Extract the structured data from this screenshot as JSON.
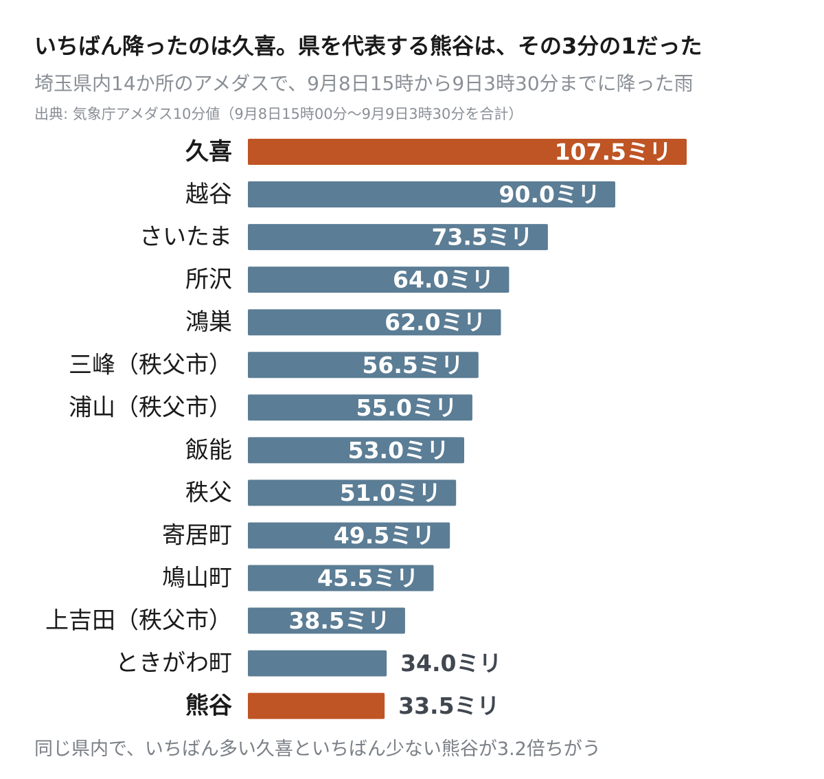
{
  "header": {
    "title": "いちばん降ったのは久喜。県を代表する熊谷は、その3分の1だった",
    "subtitle": "埼玉県内14か所のアメダスで、9月8日15時から9日3時30分までに降った雨",
    "source": "出典: 気象庁アメダス10分値（9月8日15時00分〜9月9日3時30分を合計）"
  },
  "footer": {
    "note": "同じ県内で、いちばん多い久喜といちばん少ない熊谷が3.2倍ちがう"
  },
  "colors": {
    "highlight": "#bf5424",
    "default": "#5b7d95",
    "label_dark": "#1a1a1a",
    "value_outside": "#404750"
  },
  "chart_data": {
    "type": "bar",
    "orientation": "horizontal",
    "unit": "ミリ",
    "categories": [
      "久喜",
      "越谷",
      "さいたま",
      "所沢",
      "鴻巣",
      "三峰（秩父市）",
      "浦山（秩父市）",
      "飯能",
      "秩父",
      "寄居町",
      "鳩山町",
      "上吉田（秩父市）",
      "ときがわ町",
      "熊谷"
    ],
    "values": [
      107.5,
      90.0,
      73.5,
      64.0,
      62.0,
      56.5,
      55.0,
      53.0,
      51.0,
      49.5,
      45.5,
      38.5,
      34.0,
      33.5
    ],
    "value_labels": [
      "107.5ミリ",
      "90.0ミリ",
      "73.5ミリ",
      "64.0ミリ",
      "62.0ミリ",
      "56.5ミリ",
      "55.0ミリ",
      "53.0ミリ",
      "51.0ミリ",
      "49.5ミリ",
      "45.5ミリ",
      "38.5ミリ",
      "34.0ミリ",
      "33.5ミリ"
    ],
    "highlighted": [
      "久喜",
      "熊谷"
    ],
    "xlim": [
      0,
      107.5
    ],
    "grid": false,
    "legend": "none"
  }
}
